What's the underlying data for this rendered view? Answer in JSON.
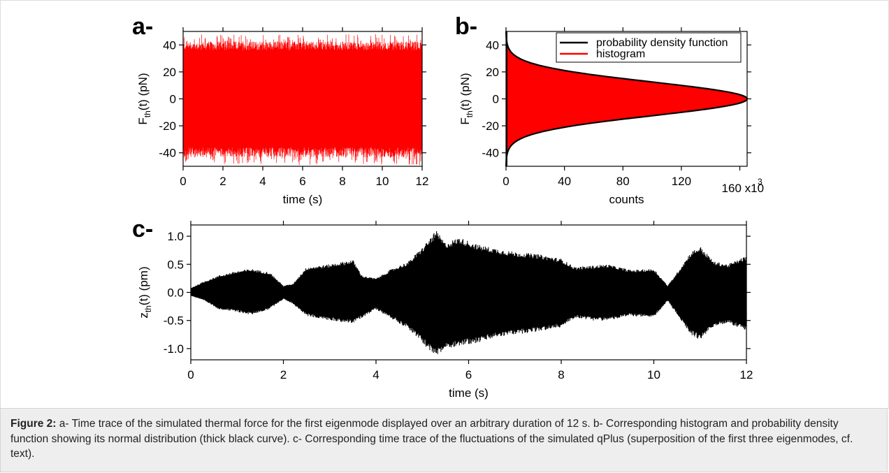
{
  "figure": {
    "caption": {
      "label": "Figure 2:",
      "text": " a- Time trace of the simulated thermal force for the first eigenmode displayed over an arbitrary duration of 12 s. b- Corresponding histogram and probability density function showing its normal distribution (thick black curve). c- Corresponding time trace of the fluctuations of the simulated qPlus (superposition of the first three eigenmodes, cf. text)."
    }
  },
  "colors": {
    "force_trace": "#ff0000",
    "histogram": "#ff0000",
    "pdf": "#000000",
    "z_trace": "#000000"
  },
  "chart_data": [
    {
      "panel": "a-",
      "type": "area",
      "description_note": "",
      "xlabel": "time (s)",
      "ylabel_main": "F",
      "ylabel_sub": "th",
      "ylabel_rest": "(t) (pN)",
      "xlim": [
        0,
        12
      ],
      "ylim": [
        -50,
        50
      ],
      "xticks": [
        0,
        2,
        4,
        6,
        8,
        10,
        12
      ],
      "yticks": [
        -40,
        -20,
        0,
        20,
        40
      ],
      "series": [
        {
          "color": "#ff0000",
          "envelope": {
            "x": [
              0,
              12
            ],
            "upper": [
              36,
              36
            ],
            "lower": [
              -36,
              -36
            ],
            "peak_max": 48,
            "peak_min": -49
          }
        }
      ]
    },
    {
      "panel": "b-",
      "type": "area",
      "xlabel": "counts",
      "x_multiplier": "x10",
      "x_multiplier_exp": "3",
      "ylabel_main": "F",
      "ylabel_sub": "th",
      "ylabel_rest": "(t) (pN)",
      "xlim": [
        0,
        165
      ],
      "ylim": [
        -50,
        50
      ],
      "xticks": [
        0,
        40,
        80,
        120,
        160
      ],
      "yticks": [
        -40,
        -20,
        0,
        20,
        40
      ],
      "legend": {
        "position": "top-right",
        "entries": [
          "probability density function",
          "histogram"
        ]
      },
      "series": [
        {
          "name": "probability density function",
          "color": "#000000",
          "peak_counts": 165,
          "mean_pN": 0,
          "sigma_pN": 12.5
        },
        {
          "name": "histogram",
          "color": "#ff0000",
          "peak_counts": 165,
          "mean_pN": 0,
          "sigma_pN": 12.5
        }
      ]
    },
    {
      "panel": "c-",
      "type": "area",
      "xlabel": "time (s)",
      "ylabel_main": "z",
      "ylabel_sub": "th",
      "ylabel_rest": "(t) (pm)",
      "xlim": [
        0,
        12
      ],
      "ylim": [
        -1.2,
        1.2
      ],
      "xticks": [
        0,
        2,
        4,
        6,
        8,
        10,
        12
      ],
      "yticks": [
        -1.0,
        -0.5,
        0.0,
        0.5,
        1.0
      ],
      "series": [
        {
          "color": "#000000",
          "envelope": {
            "x": [
              0.0,
              0.3,
              0.6,
              1.0,
              1.3,
              1.7,
              2.0,
              2.2,
              2.5,
              3.0,
              3.5,
              3.7,
              4.0,
              4.3,
              4.7,
              5.0,
              5.3,
              5.5,
              5.8,
              6.2,
              6.6,
              7.0,
              7.5,
              8.0,
              8.3,
              8.7,
              9.0,
              9.5,
              10.0,
              10.3,
              10.5,
              10.8,
              11.0,
              11.3,
              11.6,
              12.0
            ],
            "upper": [
              0.08,
              0.2,
              0.3,
              0.38,
              0.42,
              0.36,
              0.12,
              0.15,
              0.45,
              0.5,
              0.58,
              0.3,
              0.25,
              0.4,
              0.55,
              0.8,
              1.1,
              0.88,
              0.98,
              0.85,
              0.78,
              0.72,
              0.68,
              0.6,
              0.45,
              0.48,
              0.5,
              0.4,
              0.42,
              0.12,
              0.35,
              0.72,
              0.82,
              0.55,
              0.5,
              0.65
            ],
            "lower": [
              -0.06,
              -0.15,
              -0.3,
              -0.35,
              -0.4,
              -0.3,
              -0.12,
              -0.2,
              -0.42,
              -0.5,
              -0.55,
              -0.45,
              -0.3,
              -0.45,
              -0.65,
              -0.9,
              -1.15,
              -1.0,
              -0.95,
              -0.9,
              -0.8,
              -0.75,
              -0.7,
              -0.62,
              -0.45,
              -0.5,
              -0.5,
              -0.42,
              -0.45,
              -0.15,
              -0.4,
              -0.75,
              -0.85,
              -0.6,
              -0.55,
              -0.68
            ]
          }
        }
      ]
    }
  ]
}
